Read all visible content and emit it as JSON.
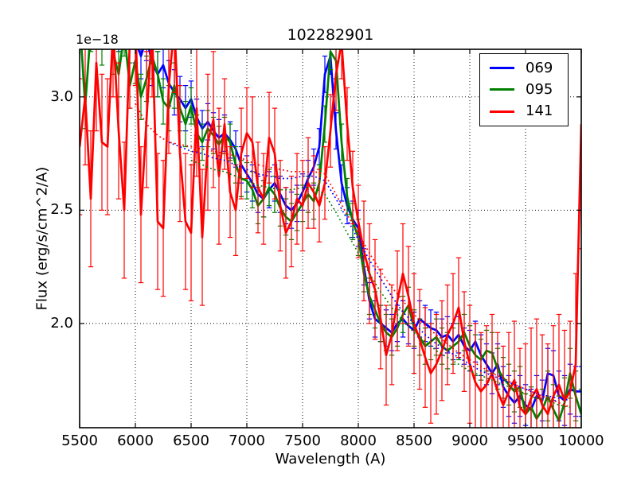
{
  "chart_data": {
    "type": "line",
    "title": "102282901",
    "xlabel": "Wavelength (A)",
    "ylabel": "Flux (erg/s/cm^2/A)",
    "y_offset_text": "1e−18",
    "xlim": [
      5500,
      10000
    ],
    "ylim": [
      1.54,
      3.21
    ],
    "xticks": [
      5500,
      6000,
      6500,
      7000,
      7500,
      8000,
      8500,
      9000,
      9500,
      10000
    ],
    "xtick_labels": [
      "5500",
      "6000",
      "6500",
      "7000",
      "7500",
      "8000",
      "8500",
      "9000",
      "9500",
      "10000"
    ],
    "yticks": [
      2.0,
      2.5,
      3.0
    ],
    "ytick_labels": [
      "2.0",
      "2.5",
      "3.0"
    ],
    "grid": true,
    "grid_style": "dotted",
    "legend_position": "upper right",
    "x_start": 5500,
    "x_step": 50,
    "series": [
      {
        "name": "069",
        "color": "#0000ff",
        "values": [
          3.5,
          3.42,
          3.55,
          3.45,
          3.35,
          3.5,
          3.42,
          3.3,
          3.45,
          3.35,
          3.25,
          3.18,
          3.26,
          3.15,
          3.1,
          3.14,
          3.06,
          3.02,
          2.99,
          2.95,
          2.99,
          2.91,
          2.86,
          2.89,
          2.85,
          2.82,
          2.84,
          2.81,
          2.77,
          2.7,
          2.66,
          2.62,
          2.57,
          2.55,
          2.59,
          2.62,
          2.57,
          2.52,
          2.5,
          2.53,
          2.58,
          2.64,
          2.69,
          2.78,
          3.1,
          3.18,
          2.85,
          2.62,
          2.52,
          2.46,
          2.42,
          2.25,
          2.1,
          2.02,
          2.0,
          1.98,
          1.96,
          2.0,
          2.02,
          1.99,
          1.97,
          2.02,
          2.0,
          1.98,
          1.97,
          1.94,
          1.95,
          1.92,
          1.95,
          1.9,
          1.88,
          1.92,
          1.86,
          1.82,
          1.78,
          1.82,
          1.72,
          1.68,
          1.65,
          1.68,
          1.64,
          1.62,
          1.68,
          1.66,
          1.78,
          1.77,
          1.68,
          1.66,
          1.71,
          1.7,
          1.7
        ],
        "error_bands": [
          [
            5500,
            6450,
            0.1
          ],
          [
            6500,
            8950,
            0.08
          ],
          [
            9000,
            9650,
            0.09
          ],
          [
            9700,
            10000,
            0.11
          ]
        ]
      },
      {
        "name": "095",
        "color": "#008000",
        "values": [
          3.35,
          2.96,
          3.3,
          3.4,
          3.24,
          3.45,
          3.2,
          3.1,
          3.28,
          3.05,
          3.16,
          3.0,
          3.08,
          3.18,
          3.1,
          2.98,
          2.95,
          3.05,
          2.95,
          2.88,
          2.96,
          2.84,
          2.8,
          2.86,
          2.83,
          2.79,
          2.83,
          2.8,
          2.7,
          2.64,
          2.63,
          2.59,
          2.52,
          2.55,
          2.6,
          2.57,
          2.51,
          2.47,
          2.45,
          2.49,
          2.53,
          2.57,
          2.54,
          2.62,
          2.88,
          3.2,
          3.16,
          2.8,
          2.56,
          2.45,
          2.38,
          2.22,
          2.12,
          2.06,
          2.0,
          1.96,
          1.94,
          1.98,
          2.04,
          2.08,
          1.98,
          1.94,
          1.9,
          1.92,
          1.94,
          1.9,
          1.88,
          1.9,
          1.92,
          1.96,
          1.9,
          1.86,
          1.84,
          1.88,
          1.87,
          1.8,
          1.76,
          1.73,
          1.7,
          1.72,
          1.6,
          1.63,
          1.58,
          1.62,
          1.68,
          1.62,
          1.57,
          1.65,
          1.78,
          1.68,
          1.6
        ],
        "error_bands": [
          [
            5500,
            6450,
            0.1
          ],
          [
            6500,
            8950,
            0.08
          ],
          [
            9000,
            9650,
            0.09
          ],
          [
            9700,
            10000,
            0.11
          ]
        ]
      },
      {
        "name": "141",
        "color": "#ff0000",
        "values": [
          2.78,
          3.0,
          2.55,
          3.15,
          2.8,
          2.78,
          3.3,
          2.85,
          2.5,
          3.25,
          3.35,
          2.48,
          2.9,
          3.3,
          2.45,
          2.42,
          3.05,
          3.32,
          2.75,
          2.45,
          2.4,
          2.95,
          2.38,
          2.8,
          2.9,
          2.65,
          2.88,
          2.58,
          2.5,
          2.75,
          2.84,
          2.8,
          2.6,
          2.55,
          2.82,
          2.75,
          2.52,
          2.4,
          2.45,
          2.55,
          2.52,
          2.62,
          2.58,
          2.52,
          2.62,
          2.85,
          3.1,
          3.24,
          2.88,
          2.6,
          2.45,
          2.32,
          2.22,
          2.15,
          2.02,
          1.86,
          1.95,
          2.1,
          2.22,
          2.12,
          2.0,
          1.93,
          1.85,
          1.78,
          1.82,
          1.88,
          1.95,
          2.0,
          2.07,
          1.92,
          1.82,
          1.74,
          1.7,
          1.73,
          1.78,
          1.7,
          1.64,
          1.7,
          1.75,
          1.63,
          1.6,
          1.67,
          1.71,
          1.64,
          1.6,
          1.68,
          1.73,
          1.66,
          1.7,
          1.82,
          2.88
        ],
        "error_bands": [
          [
            5500,
            6750,
            0.3
          ],
          [
            6800,
            7550,
            0.2
          ],
          [
            7600,
            8000,
            0.16
          ],
          [
            8050,
            8950,
            0.22
          ],
          [
            9000,
            9450,
            0.26
          ],
          [
            9500,
            9900,
            0.31
          ],
          [
            9950,
            9950,
            0.4
          ],
          [
            10000,
            10000,
            0.55
          ]
        ]
      }
    ],
    "model_curves": [
      {
        "series": "069",
        "color": "#0000ff",
        "style": "dotted",
        "x_start": 6300,
        "x_step": 100,
        "values": [
          2.8,
          2.78,
          2.76,
          2.75,
          2.73,
          2.72,
          2.7,
          2.68,
          2.66,
          2.65,
          2.64,
          2.64,
          2.65,
          2.65,
          2.63,
          2.55,
          2.46,
          2.37,
          2.28,
          2.2,
          2.12,
          2.05,
          2.0,
          1.95,
          1.91,
          1.88,
          1.85,
          1.82,
          1.79,
          1.77,
          1.75,
          1.73,
          1.71,
          1.69,
          1.68,
          1.67,
          1.66
        ]
      },
      {
        "series": "095",
        "color": "#008000",
        "style": "dotted",
        "x_start": 6500,
        "x_step": 100,
        "values": [
          2.72,
          2.7,
          2.68,
          2.67,
          2.65,
          2.63,
          2.61,
          2.6,
          2.59,
          2.59,
          2.6,
          2.6,
          2.57,
          2.49,
          2.4,
          2.31,
          2.22,
          2.14,
          2.07,
          2.01,
          1.96,
          1.92,
          1.88,
          1.85,
          1.82,
          1.79,
          1.77,
          1.75,
          1.73,
          1.71,
          1.69,
          1.67,
          1.66,
          1.64,
          1.63
        ]
      },
      {
        "series": "141",
        "color": "#ff0000",
        "style": "dotted",
        "x_start": 6000,
        "x_step": 100,
        "values": [
          2.97,
          2.88,
          2.83,
          2.8,
          2.79,
          2.78,
          2.77,
          2.76,
          2.75,
          2.74,
          2.72,
          2.7,
          2.69,
          2.68,
          2.67,
          2.67,
          2.67,
          2.66,
          2.57,
          2.48,
          2.4,
          2.31,
          2.23,
          2.16,
          2.1,
          2.04,
          1.99,
          1.95,
          1.91,
          1.87,
          1.84,
          1.81,
          1.78,
          1.76,
          1.73,
          1.71,
          1.69,
          1.67,
          1.65,
          1.63
        ]
      }
    ]
  },
  "legend": {
    "entries": [
      {
        "label": "069",
        "color": "#0000ff"
      },
      {
        "label": "095",
        "color": "#008000"
      },
      {
        "label": "141",
        "color": "#ff0000"
      }
    ]
  }
}
